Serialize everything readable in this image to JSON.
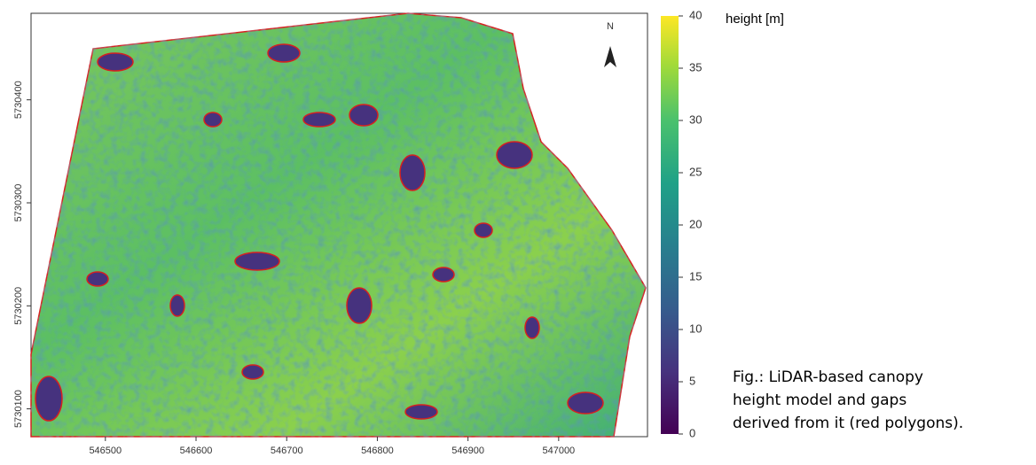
{
  "map": {
    "north_label": "N",
    "xlim": [
      546418,
      547098
    ],
    "x_ticks": [
      546500,
      546600,
      546700,
      546800,
      546900,
      547000
    ],
    "ylim": [
      5730073,
      5730484
    ],
    "y_ticks": [
      5730100,
      5730200,
      5730300,
      5730400
    ],
    "legend": {
      "title": "height [m]",
      "lim": [
        0,
        40
      ],
      "ticks": [
        0,
        5,
        10,
        15,
        20,
        25,
        30,
        35,
        40
      ]
    },
    "caption": [
      "Fig.: LiDAR-based canopy",
      "height model and gaps",
      "derived from it (red polygons)."
    ]
  }
}
